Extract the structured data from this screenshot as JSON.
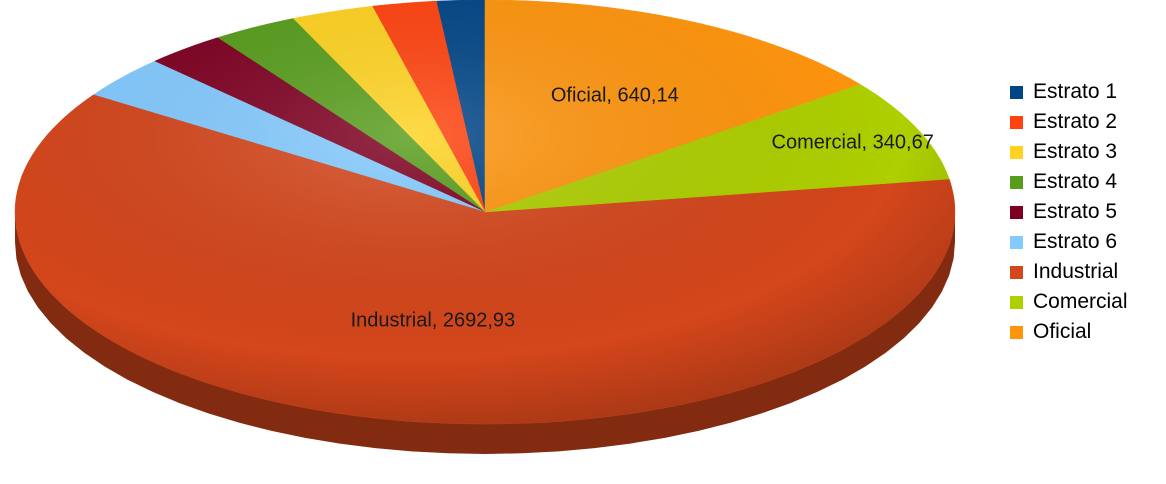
{
  "chart_data": {
    "type": "pie",
    "variant": "3d",
    "start": "top",
    "direction": "counter-clockwise",
    "labels": [
      "Estrato 1",
      "Estrato 2",
      "Estrato 3",
      "Estrato 4",
      "Estrato 5",
      "Estrato 6",
      "Industrial",
      "Comercial",
      "Oficial"
    ],
    "values": [
      72,
      96,
      124,
      128,
      121,
      142,
      2692.93,
      340.67,
      640.14
    ],
    "data_labels": {
      "Industrial": "Industrial, 2692,93",
      "Comercial": "Comercial, 340,67",
      "Oficial": "Oficial, 640,14"
    },
    "colors": [
      "#004586",
      "#ff420e",
      "#ffd320",
      "#579d1c",
      "#7e0021",
      "#83caff",
      "#d4461b",
      "#aecf00",
      "#ff950e"
    ],
    "legend_position": "right"
  }
}
